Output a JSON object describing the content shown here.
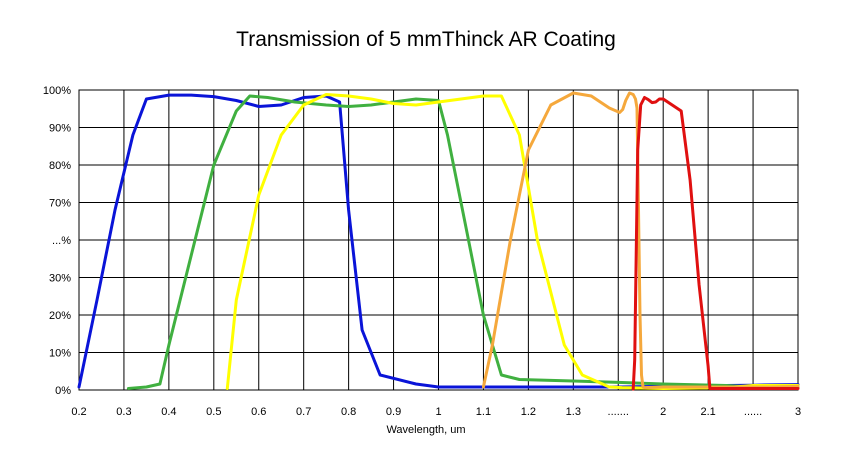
{
  "chart_data": {
    "type": "line",
    "title": "Transmission of 5 mmThinck AR Coating",
    "xlabel": "Wavelength, um",
    "ylabel": "",
    "x_ticks": [
      "0.2",
      "0.3",
      "0.4",
      "0.5",
      "0.6",
      "0.7",
      "0.8",
      "0.9",
      "1",
      "1.1",
      "1.2",
      "1.3",
      ".......",
      "2",
      "2.1",
      "......",
      "3"
    ],
    "y_ticks": [
      "0%",
      "10%",
      "20%",
      "30%",
      "...%",
      "70%",
      "80%",
      "90%",
      "100%"
    ],
    "ylim": [
      0,
      100
    ],
    "grid": true,
    "legend": "none",
    "series": [
      {
        "color": "#0a14d8",
        "points": [
          [
            0.2,
            1
          ],
          [
            0.24,
            30
          ],
          [
            0.28,
            60
          ],
          [
            0.32,
            85
          ],
          [
            0.35,
            97
          ],
          [
            0.4,
            98.3
          ],
          [
            0.45,
            98.3
          ],
          [
            0.5,
            97.8
          ],
          [
            0.55,
            96.5
          ],
          [
            0.6,
            94.5
          ],
          [
            0.65,
            95
          ],
          [
            0.7,
            97.5
          ],
          [
            0.75,
            98
          ],
          [
            0.78,
            96
          ],
          [
            0.8,
            60
          ],
          [
            0.83,
            20
          ],
          [
            0.87,
            5
          ],
          [
            0.95,
            2
          ],
          [
            1.0,
            1
          ],
          [
            1.1,
            1
          ],
          [
            1.3,
            1
          ],
          [
            1.45,
            1
          ],
          [
            2.0,
            1.2
          ],
          [
            2.2,
            1.5
          ],
          [
            2.35,
            1.6
          ],
          [
            2.45,
            1.7
          ],
          [
            2.6,
            1.8
          ]
        ]
      },
      {
        "color": "#40b040",
        "points": [
          [
            0.31,
            0.5
          ],
          [
            0.35,
            1
          ],
          [
            0.38,
            2
          ],
          [
            0.4,
            15
          ],
          [
            0.45,
            45
          ],
          [
            0.5,
            75
          ],
          [
            0.55,
            93
          ],
          [
            0.58,
            98
          ],
          [
            0.62,
            97.5
          ],
          [
            0.68,
            96
          ],
          [
            0.75,
            95
          ],
          [
            0.8,
            94.5
          ],
          [
            0.85,
            95
          ],
          [
            0.9,
            96
          ],
          [
            0.95,
            97
          ],
          [
            1.0,
            96.5
          ],
          [
            1.02,
            85
          ],
          [
            1.06,
            55
          ],
          [
            1.1,
            25
          ],
          [
            1.14,
            5
          ],
          [
            1.18,
            3.5
          ],
          [
            1.3,
            3
          ],
          [
            1.45,
            2.5
          ],
          [
            2.0,
            2
          ],
          [
            2.2,
            1.5
          ],
          [
            2.35,
            1
          ],
          [
            2.45,
            0.8
          ],
          [
            2.6,
            0.8
          ]
        ]
      },
      {
        "color": "#ffff00",
        "points": [
          [
            0.53,
            0.5
          ],
          [
            0.55,
            30
          ],
          [
            0.6,
            65
          ],
          [
            0.65,
            85
          ],
          [
            0.7,
            95
          ],
          [
            0.75,
            98.5
          ],
          [
            0.8,
            98
          ],
          [
            0.85,
            97
          ],
          [
            0.9,
            95.5
          ],
          [
            0.95,
            95
          ],
          [
            1.0,
            96
          ],
          [
            1.05,
            97
          ],
          [
            1.1,
            98
          ],
          [
            1.14,
            98
          ],
          [
            1.18,
            85
          ],
          [
            1.22,
            50
          ],
          [
            1.28,
            15
          ],
          [
            1.32,
            5
          ],
          [
            1.38,
            1
          ],
          [
            1.45,
            0.8
          ],
          [
            2.0,
            0.5
          ],
          [
            2.2,
            0.8
          ],
          [
            2.35,
            1.5
          ],
          [
            2.45,
            1.5
          ],
          [
            2.6,
            1.5
          ]
        ]
      },
      {
        "color": "#f5a83c",
        "points": [
          [
            1.1,
            1
          ],
          [
            1.12,
            15
          ],
          [
            1.16,
            50
          ],
          [
            1.2,
            80
          ],
          [
            1.25,
            95
          ],
          [
            1.3,
            99
          ],
          [
            1.34,
            98
          ],
          [
            1.38,
            94
          ],
          [
            1.42,
            92.5
          ],
          [
            1.46,
            93.5
          ],
          [
            1.5,
            96.5
          ],
          [
            1.55,
            99
          ],
          [
            1.6,
            98.5
          ],
          [
            1.63,
            97
          ],
          [
            1.65,
            94
          ],
          [
            1.67,
            60
          ],
          [
            1.69,
            25
          ],
          [
            1.71,
            5
          ],
          [
            1.73,
            1
          ],
          [
            1.75,
            0.8
          ],
          [
            2.0,
            1
          ],
          [
            2.2,
            1
          ],
          [
            2.35,
            1
          ],
          [
            2.45,
            1
          ],
          [
            2.6,
            1.2
          ]
        ]
      },
      {
        "color": "#e01010",
        "points": [
          [
            1.6,
            0.3
          ],
          [
            1.62,
            10
          ],
          [
            1.64,
            45
          ],
          [
            1.66,
            80
          ],
          [
            1.7,
            95
          ],
          [
            1.75,
            97.5
          ],
          [
            1.8,
            96.8
          ],
          [
            1.85,
            95.8
          ],
          [
            1.9,
            96
          ],
          [
            1.95,
            97
          ],
          [
            2.0,
            97
          ],
          [
            2.04,
            93
          ],
          [
            2.06,
            70
          ],
          [
            2.08,
            35
          ],
          [
            2.1,
            8
          ],
          [
            2.11,
            0.5
          ],
          [
            2.15,
            0.5
          ],
          [
            2.35,
            0.5
          ],
          [
            2.6,
            0.5
          ]
        ]
      }
    ]
  }
}
